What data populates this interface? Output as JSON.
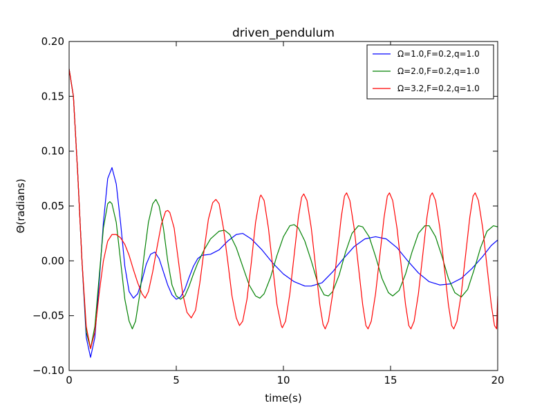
{
  "chart_data": {
    "type": "line",
    "title": "driven_pendulum",
    "xlabel": "time(s)",
    "ylabel": "Θ(radians)",
    "xlim": [
      0,
      20
    ],
    "ylim": [
      -0.1,
      0.2
    ],
    "xticks": [
      0,
      5,
      10,
      15,
      20
    ],
    "xtick_labels": [
      "0",
      "5",
      "10",
      "15",
      "20"
    ],
    "yticks": [
      -0.1,
      -0.05,
      0.0,
      0.05,
      0.1,
      0.15,
      0.2
    ],
    "ytick_labels": [
      "−0.10",
      "−0.05",
      "0.00",
      "0.05",
      "0.10",
      "0.15",
      "0.20"
    ],
    "legend_position": "top-right",
    "series": [
      {
        "name": "Ω=1.0,F=0.2,q=1.0",
        "color": "#0000ff",
        "points": [
          [
            0,
            0.175
          ],
          [
            0.2,
            0.15
          ],
          [
            0.4,
            0.08
          ],
          [
            0.6,
            0.0
          ],
          [
            0.8,
            -0.07
          ],
          [
            1.0,
            -0.088
          ],
          [
            1.2,
            -0.07
          ],
          [
            1.4,
            -0.02
          ],
          [
            1.6,
            0.035
          ],
          [
            1.8,
            0.075
          ],
          [
            2.0,
            0.085
          ],
          [
            2.2,
            0.07
          ],
          [
            2.4,
            0.035
          ],
          [
            2.6,
            -0.005
          ],
          [
            2.8,
            -0.028
          ],
          [
            3.0,
            -0.034
          ],
          [
            3.2,
            -0.03
          ],
          [
            3.4,
            -0.018
          ],
          [
            3.6,
            -0.003
          ],
          [
            3.8,
            0.006
          ],
          [
            4.0,
            0.008
          ],
          [
            4.2,
            0.002
          ],
          [
            4.4,
            -0.01
          ],
          [
            4.6,
            -0.022
          ],
          [
            4.8,
            -0.031
          ],
          [
            5.0,
            -0.035
          ],
          [
            5.2,
            -0.033
          ],
          [
            5.4,
            -0.026
          ],
          [
            5.6,
            -0.015
          ],
          [
            5.8,
            -0.005
          ],
          [
            6.0,
            0.002
          ],
          [
            6.2,
            0.005
          ],
          [
            6.6,
            0.006
          ],
          [
            7.0,
            0.01
          ],
          [
            7.4,
            0.018
          ],
          [
            7.8,
            0.024
          ],
          [
            8.1,
            0.025
          ],
          [
            8.5,
            0.02
          ],
          [
            9.0,
            0.01
          ],
          [
            9.5,
            -0.002
          ],
          [
            10.0,
            -0.012
          ],
          [
            10.5,
            -0.019
          ],
          [
            11.0,
            -0.023
          ],
          [
            11.3,
            -0.023
          ],
          [
            11.8,
            -0.02
          ],
          [
            12.3,
            -0.01
          ],
          [
            12.8,
            0.002
          ],
          [
            13.3,
            0.013
          ],
          [
            13.8,
            0.02
          ],
          [
            14.3,
            0.022
          ],
          [
            14.8,
            0.02
          ],
          [
            15.3,
            0.012
          ],
          [
            15.8,
            0.0
          ],
          [
            16.3,
            -0.011
          ],
          [
            16.8,
            -0.019
          ],
          [
            17.3,
            -0.022
          ],
          [
            17.8,
            -0.021
          ],
          [
            18.3,
            -0.016
          ],
          [
            18.8,
            -0.007
          ],
          [
            19.3,
            0.004
          ],
          [
            19.7,
            0.014
          ],
          [
            20.0,
            0.019
          ]
        ]
      },
      {
        "name": "Ω=2.0,F=0.2,q=1.0",
        "color": "#008000",
        "points": [
          [
            0,
            0.175
          ],
          [
            0.2,
            0.15
          ],
          [
            0.4,
            0.08
          ],
          [
            0.6,
            0.0
          ],
          [
            0.8,
            -0.065
          ],
          [
            1.0,
            -0.08
          ],
          [
            1.2,
            -0.06
          ],
          [
            1.4,
            -0.015
          ],
          [
            1.6,
            0.03
          ],
          [
            1.8,
            0.052
          ],
          [
            1.9,
            0.054
          ],
          [
            2.0,
            0.052
          ],
          [
            2.2,
            0.035
          ],
          [
            2.4,
            0.0
          ],
          [
            2.6,
            -0.035
          ],
          [
            2.8,
            -0.055
          ],
          [
            2.95,
            -0.062
          ],
          [
            3.1,
            -0.055
          ],
          [
            3.3,
            -0.03
          ],
          [
            3.5,
            0.005
          ],
          [
            3.7,
            0.035
          ],
          [
            3.9,
            0.052
          ],
          [
            4.05,
            0.056
          ],
          [
            4.2,
            0.05
          ],
          [
            4.4,
            0.03
          ],
          [
            4.6,
            0.0
          ],
          [
            4.8,
            -0.022
          ],
          [
            5.0,
            -0.032
          ],
          [
            5.2,
            -0.035
          ],
          [
            5.4,
            -0.032
          ],
          [
            5.6,
            -0.023
          ],
          [
            5.8,
            -0.012
          ],
          [
            6.0,
            -0.002
          ],
          [
            6.3,
            0.01
          ],
          [
            6.6,
            0.02
          ],
          [
            7.0,
            0.027
          ],
          [
            7.25,
            0.028
          ],
          [
            7.5,
            0.024
          ],
          [
            7.8,
            0.012
          ],
          [
            8.1,
            -0.005
          ],
          [
            8.4,
            -0.022
          ],
          [
            8.7,
            -0.032
          ],
          [
            8.9,
            -0.034
          ],
          [
            9.1,
            -0.03
          ],
          [
            9.4,
            -0.015
          ],
          [
            9.7,
            0.005
          ],
          [
            10.0,
            0.022
          ],
          [
            10.3,
            0.032
          ],
          [
            10.5,
            0.033
          ],
          [
            10.7,
            0.03
          ],
          [
            11.0,
            0.018
          ],
          [
            11.3,
            0.0
          ],
          [
            11.6,
            -0.02
          ],
          [
            11.9,
            -0.031
          ],
          [
            12.1,
            -0.032
          ],
          [
            12.3,
            -0.028
          ],
          [
            12.6,
            -0.013
          ],
          [
            12.9,
            0.008
          ],
          [
            13.2,
            0.025
          ],
          [
            13.5,
            0.032
          ],
          [
            13.7,
            0.031
          ],
          [
            14.0,
            0.022
          ],
          [
            14.3,
            0.004
          ],
          [
            14.6,
            -0.016
          ],
          [
            14.9,
            -0.029
          ],
          [
            15.1,
            -0.032
          ],
          [
            15.4,
            -0.027
          ],
          [
            15.7,
            -0.012
          ],
          [
            16.0,
            0.008
          ],
          [
            16.3,
            0.025
          ],
          [
            16.6,
            0.032
          ],
          [
            16.8,
            0.032
          ],
          [
            17.1,
            0.022
          ],
          [
            17.4,
            0.004
          ],
          [
            17.7,
            -0.016
          ],
          [
            18.0,
            -0.029
          ],
          [
            18.3,
            -0.033
          ],
          [
            18.6,
            -0.026
          ],
          [
            18.9,
            -0.008
          ],
          [
            19.2,
            0.012
          ],
          [
            19.5,
            0.027
          ],
          [
            19.8,
            0.032
          ],
          [
            20.0,
            0.031
          ]
        ]
      },
      {
        "name": "Ω=3.2,F=0.2,q=1.0",
        "color": "#ff0000",
        "points": [
          [
            0,
            0.175
          ],
          [
            0.2,
            0.15
          ],
          [
            0.4,
            0.08
          ],
          [
            0.6,
            0.0
          ],
          [
            0.8,
            -0.06
          ],
          [
            1.0,
            -0.08
          ],
          [
            1.2,
            -0.065
          ],
          [
            1.4,
            -0.03
          ],
          [
            1.6,
            0.0
          ],
          [
            1.8,
            0.018
          ],
          [
            2.0,
            0.024
          ],
          [
            2.2,
            0.024
          ],
          [
            2.4,
            0.021
          ],
          [
            2.6,
            0.015
          ],
          [
            2.8,
            0.005
          ],
          [
            3.0,
            -0.008
          ],
          [
            3.2,
            -0.02
          ],
          [
            3.4,
            -0.03
          ],
          [
            3.55,
            -0.034
          ],
          [
            3.7,
            -0.028
          ],
          [
            3.9,
            -0.01
          ],
          [
            4.1,
            0.012
          ],
          [
            4.3,
            0.033
          ],
          [
            4.5,
            0.045
          ],
          [
            4.6,
            0.046
          ],
          [
            4.7,
            0.044
          ],
          [
            4.9,
            0.03
          ],
          [
            5.1,
            0.0
          ],
          [
            5.3,
            -0.03
          ],
          [
            5.5,
            -0.047
          ],
          [
            5.7,
            -0.052
          ],
          [
            5.9,
            -0.045
          ],
          [
            6.1,
            -0.02
          ],
          [
            6.3,
            0.01
          ],
          [
            6.5,
            0.038
          ],
          [
            6.7,
            0.053
          ],
          [
            6.85,
            0.056
          ],
          [
            7.0,
            0.052
          ],
          [
            7.2,
            0.03
          ],
          [
            7.4,
            0.0
          ],
          [
            7.6,
            -0.032
          ],
          [
            7.8,
            -0.052
          ],
          [
            7.95,
            -0.059
          ],
          [
            8.1,
            -0.055
          ],
          [
            8.3,
            -0.035
          ],
          [
            8.5,
            -0.002
          ],
          [
            8.7,
            0.035
          ],
          [
            8.9,
            0.058
          ],
          [
            8.95,
            0.06
          ],
          [
            9.1,
            0.055
          ],
          [
            9.3,
            0.03
          ],
          [
            9.5,
            -0.005
          ],
          [
            9.7,
            -0.04
          ],
          [
            9.9,
            -0.059
          ],
          [
            9.95,
            -0.061
          ],
          [
            10.1,
            -0.055
          ],
          [
            10.3,
            -0.03
          ],
          [
            10.5,
            0.005
          ],
          [
            10.7,
            0.04
          ],
          [
            10.85,
            0.058
          ],
          [
            10.95,
            0.061
          ],
          [
            11.1,
            0.055
          ],
          [
            11.3,
            0.03
          ],
          [
            11.5,
            -0.005
          ],
          [
            11.7,
            -0.04
          ],
          [
            11.85,
            -0.058
          ],
          [
            11.95,
            -0.062
          ],
          [
            12.1,
            -0.055
          ],
          [
            12.3,
            -0.03
          ],
          [
            12.5,
            0.005
          ],
          [
            12.7,
            0.04
          ],
          [
            12.85,
            0.059
          ],
          [
            12.95,
            0.062
          ],
          [
            13.1,
            0.055
          ],
          [
            13.3,
            0.03
          ],
          [
            13.5,
            -0.005
          ],
          [
            13.7,
            -0.04
          ],
          [
            13.85,
            -0.059
          ],
          [
            13.95,
            -0.062
          ],
          [
            14.1,
            -0.055
          ],
          [
            14.3,
            -0.03
          ],
          [
            14.5,
            0.005
          ],
          [
            14.7,
            0.04
          ],
          [
            14.85,
            0.059
          ],
          [
            14.95,
            0.062
          ],
          [
            15.1,
            0.055
          ],
          [
            15.3,
            0.03
          ],
          [
            15.5,
            -0.005
          ],
          [
            15.7,
            -0.04
          ],
          [
            15.85,
            -0.059
          ],
          [
            15.95,
            -0.062
          ],
          [
            16.1,
            -0.055
          ],
          [
            16.3,
            -0.03
          ],
          [
            16.5,
            0.005
          ],
          [
            16.7,
            0.04
          ],
          [
            16.85,
            0.059
          ],
          [
            16.95,
            0.062
          ],
          [
            17.1,
            0.055
          ],
          [
            17.3,
            0.03
          ],
          [
            17.5,
            -0.005
          ],
          [
            17.7,
            -0.04
          ],
          [
            17.85,
            -0.059
          ],
          [
            17.95,
            -0.062
          ],
          [
            18.1,
            -0.055
          ],
          [
            18.3,
            -0.03
          ],
          [
            18.5,
            0.005
          ],
          [
            18.7,
            0.04
          ],
          [
            18.85,
            0.059
          ],
          [
            18.95,
            0.062
          ],
          [
            19.1,
            0.055
          ],
          [
            19.3,
            0.03
          ],
          [
            19.5,
            -0.005
          ],
          [
            19.7,
            -0.04
          ],
          [
            19.85,
            -0.059
          ],
          [
            19.95,
            -0.062
          ],
          [
            20.0,
            -0.032
          ]
        ]
      }
    ]
  }
}
